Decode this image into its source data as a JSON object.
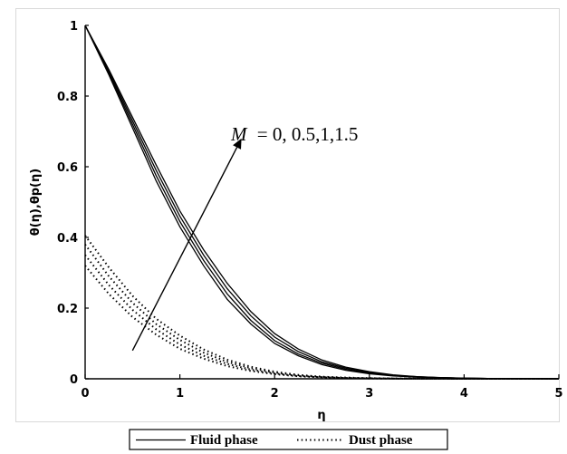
{
  "chart_data": {
    "type": "line",
    "title": "",
    "xlabel": "η",
    "ylabel": "θ(η),θp(η)",
    "xlim": [
      0,
      5
    ],
    "ylim": [
      0,
      1
    ],
    "x_ticks": [
      "0",
      "1",
      "2",
      "3",
      "4",
      "5"
    ],
    "y_ticks": [
      "0",
      "0.2",
      "0.4",
      "0.6",
      "0.8",
      "1"
    ],
    "grid": false,
    "legend_position": "bottom-center",
    "legend": {
      "fluid_label": "Fluid phase",
      "dust_label": "Dust phase"
    },
    "annotation": {
      "variable": "M",
      "values": "= 0, 0.5,1,1.5",
      "arrow_from": [
        0.5,
        0.08
      ],
      "arrow_to": [
        1.65,
        0.68
      ]
    },
    "x": [
      0,
      0.25,
      0.5,
      0.75,
      1,
      1.25,
      1.5,
      1.75,
      2,
      2.25,
      2.5,
      2.75,
      3,
      3.25,
      3.5,
      3.75,
      4,
      4.25,
      4.5,
      4.75,
      5
    ],
    "series": [
      {
        "name": "Fluid phase",
        "M": 0,
        "values": [
          1,
          0.86,
          0.71,
          0.56,
          0.43,
          0.32,
          0.225,
          0.155,
          0.1,
          0.065,
          0.04,
          0.024,
          0.014,
          0.008,
          0.005,
          0.003,
          0.0015,
          0.0008,
          0.0004,
          0.0002,
          0
        ]
      },
      {
        "name": "Fluid phase",
        "M": 0.5,
        "values": [
          1,
          0.865,
          0.72,
          0.575,
          0.445,
          0.335,
          0.24,
          0.165,
          0.108,
          0.07,
          0.044,
          0.027,
          0.016,
          0.009,
          0.005,
          0.003,
          0.0015,
          0.0008,
          0.0004,
          0.0002,
          0
        ]
      },
      {
        "name": "Fluid phase",
        "M": 1,
        "values": [
          1,
          0.87,
          0.73,
          0.59,
          0.46,
          0.35,
          0.255,
          0.178,
          0.118,
          0.077,
          0.048,
          0.03,
          0.018,
          0.01,
          0.006,
          0.003,
          0.0017,
          0.0009,
          0.0004,
          0.0002,
          0
        ]
      },
      {
        "name": "Fluid phase",
        "M": 1.5,
        "values": [
          1,
          0.875,
          0.74,
          0.605,
          0.475,
          0.365,
          0.27,
          0.19,
          0.128,
          0.084,
          0.053,
          0.033,
          0.02,
          0.011,
          0.006,
          0.0035,
          0.0018,
          0.001,
          0.0005,
          0.0002,
          0
        ]
      },
      {
        "name": "Dust phase",
        "M": 0,
        "values": [
          0.32,
          0.24,
          0.175,
          0.125,
          0.085,
          0.057,
          0.036,
          0.022,
          0.013,
          0.007,
          0.004,
          0.002,
          0.001,
          0.0006,
          0.0003,
          0.0002,
          0.0001,
          0,
          0,
          0,
          0
        ]
      },
      {
        "name": "Dust phase",
        "M": 0.5,
        "values": [
          0.35,
          0.265,
          0.195,
          0.14,
          0.097,
          0.065,
          0.042,
          0.026,
          0.015,
          0.008,
          0.0045,
          0.0024,
          0.0012,
          0.0007,
          0.0004,
          0.0002,
          0.0001,
          0,
          0,
          0,
          0
        ]
      },
      {
        "name": "Dust phase",
        "M": 1,
        "values": [
          0.38,
          0.29,
          0.215,
          0.155,
          0.11,
          0.074,
          0.048,
          0.03,
          0.018,
          0.01,
          0.0055,
          0.003,
          0.0015,
          0.0008,
          0.0004,
          0.0002,
          0.0001,
          0,
          0,
          0,
          0
        ]
      },
      {
        "name": "Dust phase",
        "M": 1.5,
        "values": [
          0.405,
          0.315,
          0.235,
          0.17,
          0.122,
          0.083,
          0.054,
          0.034,
          0.02,
          0.011,
          0.006,
          0.0033,
          0.0017,
          0.0009,
          0.0005,
          0.0002,
          0.0001,
          0,
          0,
          0,
          0
        ]
      }
    ]
  }
}
